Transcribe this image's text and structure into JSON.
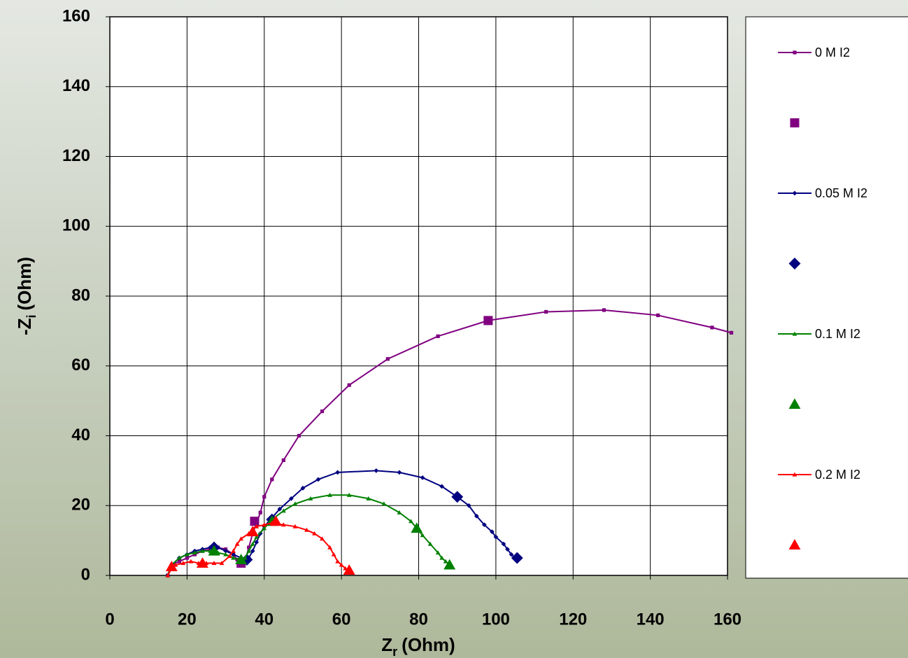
{
  "chart_data": {
    "type": "scatter",
    "x_label": {
      "text": "Z",
      "subscript": "r",
      "unit": "(Ohm)"
    },
    "y_label": {
      "text": "-Z",
      "subscript": "i",
      "unit": "(Ohm)"
    },
    "xlim": [
      0,
      160
    ],
    "ylim": [
      0,
      160
    ],
    "xticks": [
      0,
      20,
      40,
      60,
      80,
      100,
      120,
      140,
      160
    ],
    "yticks": [
      0,
      20,
      40,
      60,
      80,
      100,
      120,
      140,
      160
    ],
    "grid": true,
    "legend": "right",
    "series": [
      {
        "name": "0 M I2",
        "color": "#800080",
        "marker": "square",
        "line": true,
        "x": [
          15,
          16,
          18,
          20,
          22,
          24,
          26,
          28,
          30,
          32,
          33,
          34,
          35,
          36,
          37,
          38,
          39,
          40,
          42,
          45,
          49,
          55,
          62,
          72,
          85,
          98,
          113,
          128,
          142,
          156,
          161
        ],
        "values": [
          0,
          3,
          4,
          5,
          6,
          7,
          7.5,
          8,
          7.5,
          6,
          4.5,
          3.5,
          4,
          8,
          12,
          15,
          18,
          22.5,
          27.5,
          33,
          40,
          47,
          54.5,
          62,
          68.5,
          73,
          75.5,
          76,
          74.5,
          71,
          69.5
        ]
      },
      {
        "name": null,
        "color": "#800080",
        "marker": "square",
        "line": false,
        "x": [
          34,
          37.5,
          98
        ],
        "values": [
          3.5,
          15.5,
          73
        ]
      },
      {
        "name": "0.05 M I2",
        "color": "#000080",
        "marker": "diamond",
        "line": true,
        "x": [
          15,
          16,
          18,
          20,
          22,
          24,
          26,
          28,
          30,
          32,
          34,
          35,
          36,
          37,
          38,
          39,
          40,
          42,
          44,
          47,
          50,
          54,
          59,
          69,
          75,
          81,
          86,
          90,
          93,
          95,
          97,
          99,
          100,
          102,
          103,
          104,
          105.5
        ],
        "values": [
          0,
          3,
          5,
          6,
          7,
          7.5,
          8,
          8,
          7,
          6,
          5,
          4.5,
          5,
          7,
          9.5,
          12,
          14,
          16.5,
          19,
          22,
          25,
          27.5,
          29.5,
          30,
          29.5,
          28,
          25.5,
          22.5,
          20,
          17,
          14.5,
          12.5,
          11,
          9,
          7.5,
          6,
          4.5
        ]
      },
      {
        "name": null,
        "color": "#000080",
        "marker": "diamond",
        "line": false,
        "x": [
          27,
          35.5,
          42,
          90,
          105.5
        ],
        "values": [
          8,
          4.5,
          16,
          22.5,
          5
        ]
      },
      {
        "name": "0.1 M I2",
        "color": "#008000",
        "marker": "triangle",
        "line": true,
        "x": [
          15,
          16,
          18,
          20,
          22,
          24,
          26,
          28,
          30,
          32,
          34,
          35,
          36,
          37,
          38,
          40,
          42,
          45,
          48,
          52,
          57,
          62,
          67,
          71,
          75,
          78,
          79.5,
          81,
          83,
          85,
          86,
          87,
          88
        ],
        "values": [
          0,
          3,
          5,
          6,
          6.5,
          7,
          7,
          6.5,
          6,
          5,
          4.5,
          5,
          7,
          9,
          11,
          13.5,
          16,
          18.5,
          20.5,
          22,
          23,
          23,
          22,
          20.5,
          18,
          15.5,
          13.5,
          11.5,
          9,
          6.5,
          5,
          4,
          3
        ]
      },
      {
        "name": null,
        "color": "#008000",
        "marker": "triangle",
        "line": false,
        "x": [
          27,
          34,
          42,
          79.5,
          88
        ],
        "values": [
          7,
          4.5,
          15.5,
          13.5,
          3
        ]
      },
      {
        "name": "0.2 M I2",
        "color": "#ff0000",
        "marker": "triangle",
        "line": true,
        "x": [
          15,
          16,
          17,
          19,
          21,
          23,
          25,
          27,
          29,
          31,
          32,
          33,
          34,
          36,
          37,
          38,
          40,
          42,
          45,
          48,
          51,
          53,
          55,
          57,
          58,
          59,
          60,
          61,
          62
        ],
        "values": [
          0,
          2,
          3,
          3.5,
          4,
          3.5,
          3.5,
          3.5,
          3.5,
          5.5,
          7,
          9,
          10.5,
          12,
          13.5,
          14,
          14.5,
          15,
          14.5,
          14,
          13,
          12,
          10.5,
          8,
          6,
          4,
          3,
          2,
          1.5
        ]
      },
      {
        "name": null,
        "color": "#ff0000",
        "marker": "triangle",
        "line": false,
        "x": [
          16,
          24,
          37,
          43,
          62
        ],
        "values": [
          2.5,
          3.5,
          12.5,
          15.5,
          1.5
        ]
      }
    ]
  }
}
